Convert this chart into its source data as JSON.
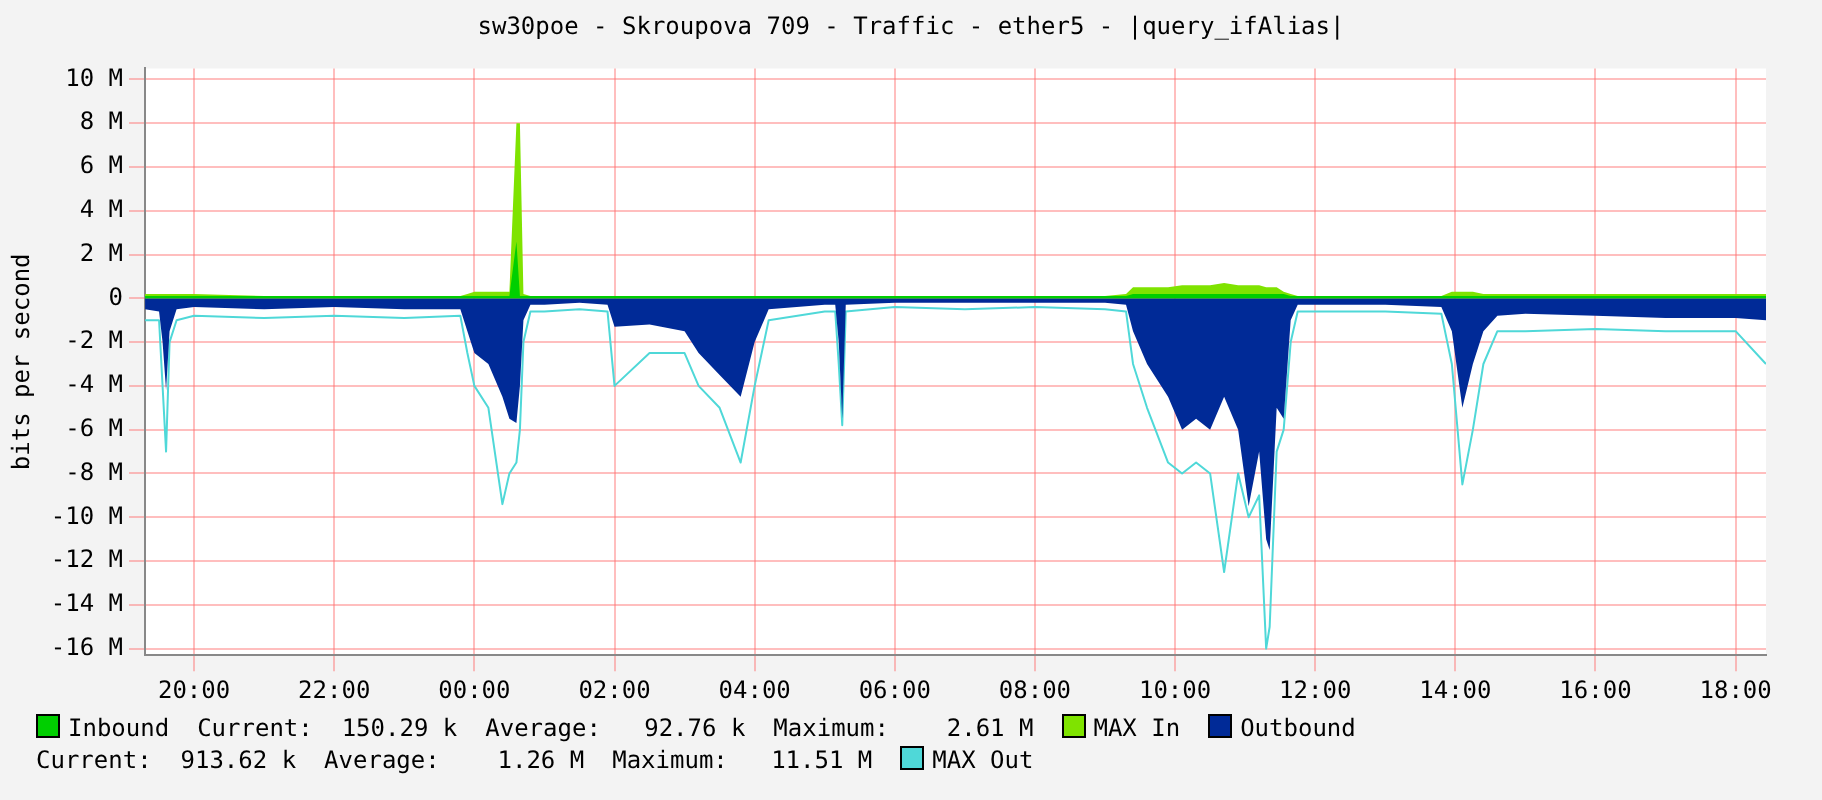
{
  "chart_data": {
    "type": "area",
    "title": "sw30poe - Skroupova 709 - Traffic - ether5 - |query_ifAlias|",
    "ylabel": "bits per second",
    "x": [
      "--01-01T19:18",
      "--01-01T19:30",
      "--01-01T19:33",
      "--01-01T19:36",
      "--01-01T19:39",
      "--01-01T19:45",
      "--01-01T20:00",
      "--01-01T21:00",
      "--01-01T22:00",
      "--01-01T23:00",
      "--01-01T23:48",
      "--01-01T23:54",
      "--01-02T00:00",
      "--01-02T00:12",
      "--01-02T00:24",
      "--01-02T00:30",
      "--01-02T00:36",
      "--01-02T00:39",
      "--01-02T00:42",
      "--01-02T00:48",
      "--01-02T01:00",
      "--01-02T01:30",
      "--01-02T01:54",
      "--01-02T02:00",
      "--01-02T02:30",
      "--01-02T03:00",
      "--01-02T03:12",
      "--01-02T03:30",
      "--01-02T03:48",
      "--01-02T04:00",
      "--01-02T04:12",
      "--01-02T05:00",
      "--01-02T05:09",
      "--01-02T05:12",
      "--01-02T05:15",
      "--01-02T05:18",
      "--01-02T06:00",
      "--01-02T07:00",
      "--01-02T08:00",
      "--01-02T09:00",
      "--01-02T09:18",
      "--01-02T09:24",
      "--01-02T09:36",
      "--01-02T09:54",
      "--01-02T10:06",
      "--01-02T10:18",
      "--01-02T10:30",
      "--01-02T10:42",
      "--01-02T10:54",
      "--01-02T11:03",
      "--01-02T11:12",
      "--01-02T11:18",
      "--01-02T11:21",
      "--01-02T11:27",
      "--01-02T11:33",
      "--01-02T11:39",
      "--01-02T11:45",
      "--01-02T12:00",
      "--01-02T13:00",
      "--01-02T13:48",
      "--01-02T13:57",
      "--01-02T14:06",
      "--01-02T14:15",
      "--01-02T14:24",
      "--01-02T14:36",
      "--01-02T15:00",
      "--01-02T16:00",
      "--01-02T17:00",
      "--01-02T18:00",
      "--01-02T18:26"
    ],
    "series": [
      {
        "name": "Inbound",
        "color": "#00cf00",
        "values": [
          0.1,
          0.1,
          0.1,
          0.1,
          0.1,
          0.1,
          0.1,
          0.1,
          0.1,
          0.1,
          0.1,
          0.1,
          0.1,
          0.1,
          0.1,
          0.1,
          2.6,
          0.1,
          0.1,
          0.1,
          0.1,
          0.1,
          0.1,
          0.1,
          0.1,
          0.1,
          0.1,
          0.1,
          0.1,
          0.1,
          0.1,
          0.1,
          0.1,
          0.1,
          0.1,
          0.1,
          0.1,
          0.1,
          0.1,
          0.1,
          0.1,
          0.2,
          0.2,
          0.2,
          0.2,
          0.2,
          0.2,
          0.2,
          0.2,
          0.2,
          0.2,
          0.2,
          0.2,
          0.2,
          0.2,
          0.1,
          0.1,
          0.1,
          0.1,
          0.1,
          0.1,
          0.1,
          0.1,
          0.1,
          0.1,
          0.1,
          0.1,
          0.1,
          0.1,
          0.1
        ]
      },
      {
        "name": "MAX In",
        "color": "#7fe300",
        "values": [
          0.2,
          0.2,
          0.2,
          0.2,
          0.2,
          0.2,
          0.2,
          0.1,
          0.1,
          0.1,
          0.1,
          0.2,
          0.3,
          0.3,
          0.3,
          0.3,
          8,
          8,
          0.2,
          0.1,
          0.1,
          0.1,
          0.1,
          0.1,
          0.1,
          0.1,
          0.1,
          0.1,
          0.1,
          0.1,
          0.1,
          0.1,
          0.1,
          0.1,
          0.1,
          0.1,
          0.1,
          0.1,
          0.1,
          0.1,
          0.2,
          0.5,
          0.5,
          0.5,
          0.6,
          0.6,
          0.6,
          0.7,
          0.6,
          0.6,
          0.6,
          0.5,
          0.5,
          0.5,
          0.3,
          0.2,
          0.1,
          0.1,
          0.1,
          0.1,
          0.3,
          0.3,
          0.3,
          0.2,
          0.2,
          0.2,
          0.2,
          0.2,
          0.2,
          0.2
        ]
      },
      {
        "name": "Outbound",
        "color": "#002a97",
        "values": [
          -0.5,
          -0.6,
          -2,
          -4.2,
          -1.5,
          -0.5,
          -0.4,
          -0.5,
          -0.4,
          -0.5,
          -0.5,
          -1.5,
          -2.5,
          -3,
          -4.5,
          -5.5,
          -5.7,
          -4,
          -1,
          -0.3,
          -0.3,
          -0.2,
          -0.3,
          -1.3,
          -1.2,
          -1.5,
          -2.5,
          -3.5,
          -4.5,
          -2,
          -0.5,
          -0.3,
          -0.3,
          -2,
          -5.5,
          -0.3,
          -0.2,
          -0.2,
          -0.2,
          -0.2,
          -0.3,
          -1.5,
          -3,
          -4.5,
          -6,
          -5.5,
          -6,
          -4.5,
          -6,
          -9.5,
          -7,
          -11,
          -11.5,
          -5,
          -5.5,
          -1,
          -0.3,
          -0.3,
          -0.3,
          -0.4,
          -1.5,
          -5,
          -3,
          -1.5,
          -0.8,
          -0.7,
          -0.8,
          -0.9,
          -0.9,
          -1
        ]
      },
      {
        "name": "MAX Out",
        "type": "line",
        "color": "#4fd8d8",
        "values": [
          -1,
          -1,
          -4,
          -7,
          -2,
          -1,
          -0.8,
          -0.9,
          -0.8,
          -0.9,
          -0.8,
          -2.5,
          -4,
          -5,
          -9.4,
          -8,
          -7.5,
          -6,
          -2,
          -0.6,
          -0.6,
          -0.5,
          -0.6,
          -4,
          -2.5,
          -2.5,
          -4,
          -5,
          -7.5,
          -4,
          -1,
          -0.6,
          -0.6,
          -3,
          -5.8,
          -0.6,
          -0.4,
          -0.5,
          -0.4,
          -0.5,
          -0.6,
          -3,
          -5,
          -7.5,
          -8,
          -7.5,
          -8,
          -12.5,
          -8,
          -10,
          -9,
          -16,
          -15,
          -7,
          -6,
          -2,
          -0.6,
          -0.6,
          -0.6,
          -0.7,
          -3,
          -8.5,
          -6,
          -3,
          -1.5,
          -1.5,
          -1.4,
          -1.5,
          -1.5,
          -3
        ]
      }
    ],
    "xlim": [
      "--01-01T19:18",
      "--01-02T18:26"
    ],
    "xticks": [
      {
        "value": "--01-01T20:00",
        "label": "20:00"
      },
      {
        "value": "--01-01T22:00",
        "label": "22:00"
      },
      {
        "value": "--01-02T00:00",
        "label": "00:00"
      },
      {
        "value": "--01-02T02:00",
        "label": "02:00"
      },
      {
        "value": "--01-02T04:00",
        "label": "04:00"
      },
      {
        "value": "--01-02T06:00",
        "label": "06:00"
      },
      {
        "value": "--01-02T08:00",
        "label": "08:00"
      },
      {
        "value": "--01-02T10:00",
        "label": "10:00"
      },
      {
        "value": "--01-02T12:00",
        "label": "12:00"
      },
      {
        "value": "--01-02T14:00",
        "label": "14:00"
      },
      {
        "value": "--01-02T16:00",
        "label": "16:00"
      },
      {
        "value": "--01-02T18:00",
        "label": "18:00"
      }
    ],
    "ylim": [
      -16.3,
      10.5
    ],
    "yticks": [
      {
        "value": -16,
        "label": "-16 M"
      },
      {
        "value": -14,
        "label": "-14 M"
      },
      {
        "value": -12,
        "label": "-12 M"
      },
      {
        "value": -10,
        "label": "-10 M"
      },
      {
        "value": -8,
        "label": "-8 M"
      },
      {
        "value": -6,
        "label": "-6 M"
      },
      {
        "value": -4,
        "label": "-4 M"
      },
      {
        "value": -2,
        "label": "-2 M"
      },
      {
        "value": 0,
        "label": "0"
      },
      {
        "value": 2,
        "label": "2 M"
      },
      {
        "value": 4,
        "label": "4 M"
      },
      {
        "value": 6,
        "label": "6 M"
      },
      {
        "value": 8,
        "label": "8 M"
      },
      {
        "value": 10,
        "label": "10 M"
      }
    ],
    "grid": true,
    "legend": "bottom",
    "marker": "none",
    "annotations": [
      "Current:  150.29 k",
      "Average:   92.76 k",
      "Maximum:    2.61 M",
      "Current:  913.62 k",
      "Average:    1.26 M",
      "Maximum:   11.51 M"
    ]
  }
}
